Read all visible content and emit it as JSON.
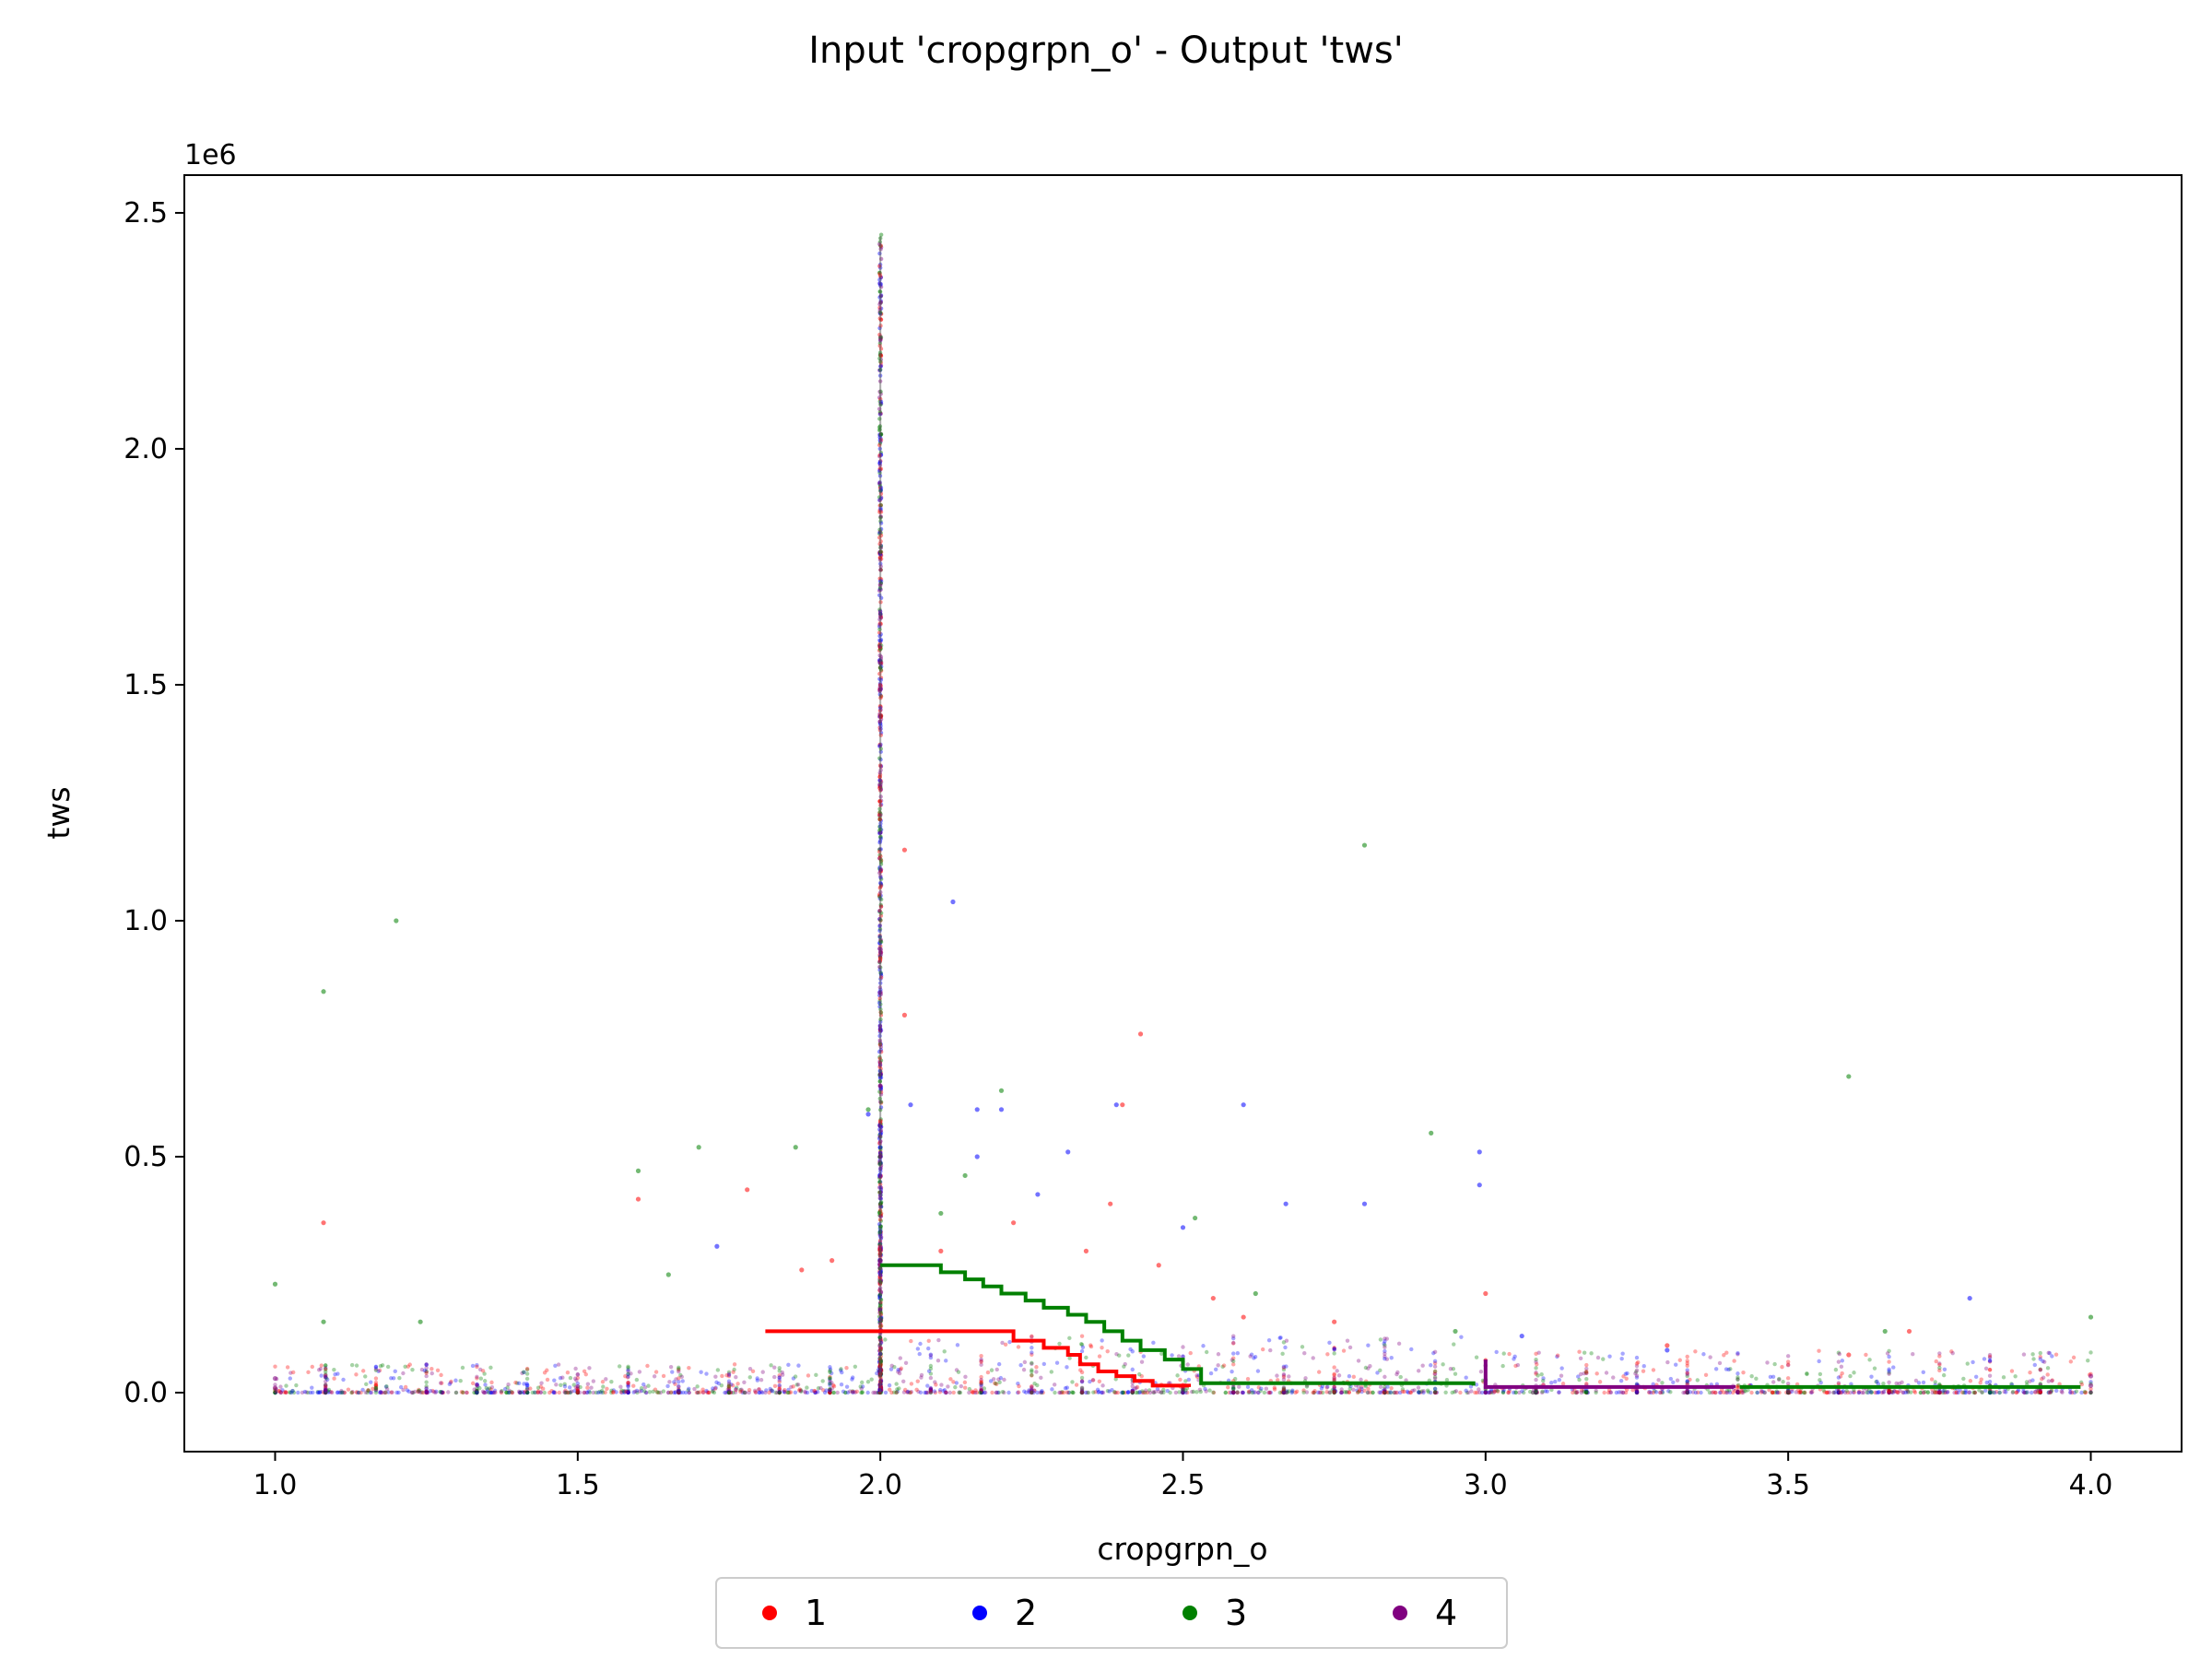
{
  "chart_data": {
    "type": "scatter",
    "title": "Input 'cropgrpn_o' - Output 'tws'",
    "xlabel": "cropgrpn_o",
    "ylabel": "tws",
    "y_offset_text": "1e6",
    "xlim": [
      0.85,
      4.15
    ],
    "ylim": [
      -125000,
      2580000
    ],
    "xticks": [
      1.0,
      1.5,
      2.0,
      2.5,
      3.0,
      3.5,
      4.0
    ],
    "xtick_labels": [
      "1.0",
      "1.5",
      "2.0",
      "2.5",
      "3.0",
      "3.5",
      "4.0"
    ],
    "yticks": [
      0,
      500000,
      1000000,
      1500000,
      2000000,
      2500000
    ],
    "ytick_labels": [
      "0.0",
      "0.5",
      "1.0",
      "1.5",
      "2.0",
      "2.5"
    ],
    "grid": false,
    "legend_position": "below-center",
    "series": [
      {
        "name": "1",
        "color": "#ff0000",
        "scatter": [
          [
            1.08,
            360000
          ],
          [
            1.6,
            410000
          ],
          [
            1.78,
            430000
          ],
          [
            1.87,
            260000
          ],
          [
            1.92,
            280000
          ],
          [
            2.04,
            1150000
          ],
          [
            2.04,
            800000
          ],
          [
            2.1,
            300000
          ],
          [
            2.22,
            360000
          ],
          [
            2.34,
            300000
          ],
          [
            2.38,
            400000
          ],
          [
            2.4,
            610000
          ],
          [
            2.43,
            760000
          ],
          [
            2.46,
            270000
          ],
          [
            2.55,
            200000
          ],
          [
            2.6,
            160000
          ],
          [
            2.75,
            150000
          ],
          [
            3.0,
            210000
          ],
          [
            3.3,
            100000
          ],
          [
            3.6,
            80000
          ],
          [
            3.7,
            130000
          ]
        ],
        "step_line": [
          [
            1.81,
            130000
          ],
          [
            2.2,
            130000
          ],
          [
            2.22,
            110000
          ],
          [
            2.27,
            95000
          ],
          [
            2.31,
            80000
          ],
          [
            2.33,
            60000
          ],
          [
            2.36,
            45000
          ],
          [
            2.39,
            35000
          ],
          [
            2.42,
            25000
          ],
          [
            2.45,
            15000
          ],
          [
            2.51,
            12000
          ]
        ]
      },
      {
        "name": "2",
        "color": "#0000ff",
        "scatter": [
          [
            1.73,
            310000
          ],
          [
            1.98,
            590000
          ],
          [
            2.05,
            610000
          ],
          [
            2.12,
            1040000
          ],
          [
            2.16,
            600000
          ],
          [
            2.16,
            500000
          ],
          [
            2.2,
            600000
          ],
          [
            2.26,
            420000
          ],
          [
            2.31,
            510000
          ],
          [
            2.39,
            610000
          ],
          [
            2.5,
            350000
          ],
          [
            2.6,
            610000
          ],
          [
            2.67,
            400000
          ],
          [
            2.8,
            400000
          ],
          [
            2.99,
            510000
          ],
          [
            2.99,
            440000
          ],
          [
            3.06,
            120000
          ],
          [
            3.3,
            90000
          ],
          [
            3.8,
            200000
          ]
        ],
        "step_line": []
      },
      {
        "name": "3",
        "color": "#008000",
        "scatter": [
          [
            1.0,
            230000
          ],
          [
            1.08,
            850000
          ],
          [
            1.08,
            150000
          ],
          [
            1.2,
            1000000
          ],
          [
            1.24,
            150000
          ],
          [
            1.6,
            470000
          ],
          [
            1.65,
            250000
          ],
          [
            1.7,
            520000
          ],
          [
            1.86,
            520000
          ],
          [
            1.98,
            600000
          ],
          [
            2.1,
            380000
          ],
          [
            2.14,
            460000
          ],
          [
            2.2,
            640000
          ],
          [
            2.52,
            370000
          ],
          [
            2.62,
            210000
          ],
          [
            2.8,
            1160000
          ],
          [
            2.91,
            550000
          ],
          [
            2.95,
            130000
          ],
          [
            3.6,
            670000
          ],
          [
            3.66,
            130000
          ],
          [
            4.0,
            160000
          ]
        ],
        "step_line": [
          [
            2.0,
            270000
          ],
          [
            2.08,
            270000
          ],
          [
            2.1,
            255000
          ],
          [
            2.14,
            240000
          ],
          [
            2.17,
            225000
          ],
          [
            2.2,
            210000
          ],
          [
            2.24,
            195000
          ],
          [
            2.27,
            180000
          ],
          [
            2.31,
            165000
          ],
          [
            2.34,
            150000
          ],
          [
            2.37,
            130000
          ],
          [
            2.4,
            110000
          ],
          [
            2.43,
            90000
          ],
          [
            2.47,
            70000
          ],
          [
            2.5,
            50000
          ],
          [
            2.53,
            20000
          ],
          [
            2.98,
            15000
          ]
        ],
        "step_line_2": [
          [
            3.42,
            12000
          ],
          [
            3.98,
            8000
          ]
        ]
      },
      {
        "name": "4",
        "color": "#800080",
        "scatter": [
          [
            1.0,
            10000
          ],
          [
            1.0,
            30000
          ],
          [
            2.0,
            650000
          ],
          [
            2.0,
            500000
          ],
          [
            2.0,
            280000
          ],
          [
            4.0,
            15000
          ],
          [
            4.0,
            35000
          ]
        ],
        "step_line": [
          [
            3.0,
            70000
          ],
          [
            3.0,
            12000
          ],
          [
            3.41,
            10000
          ]
        ]
      }
    ]
  }
}
